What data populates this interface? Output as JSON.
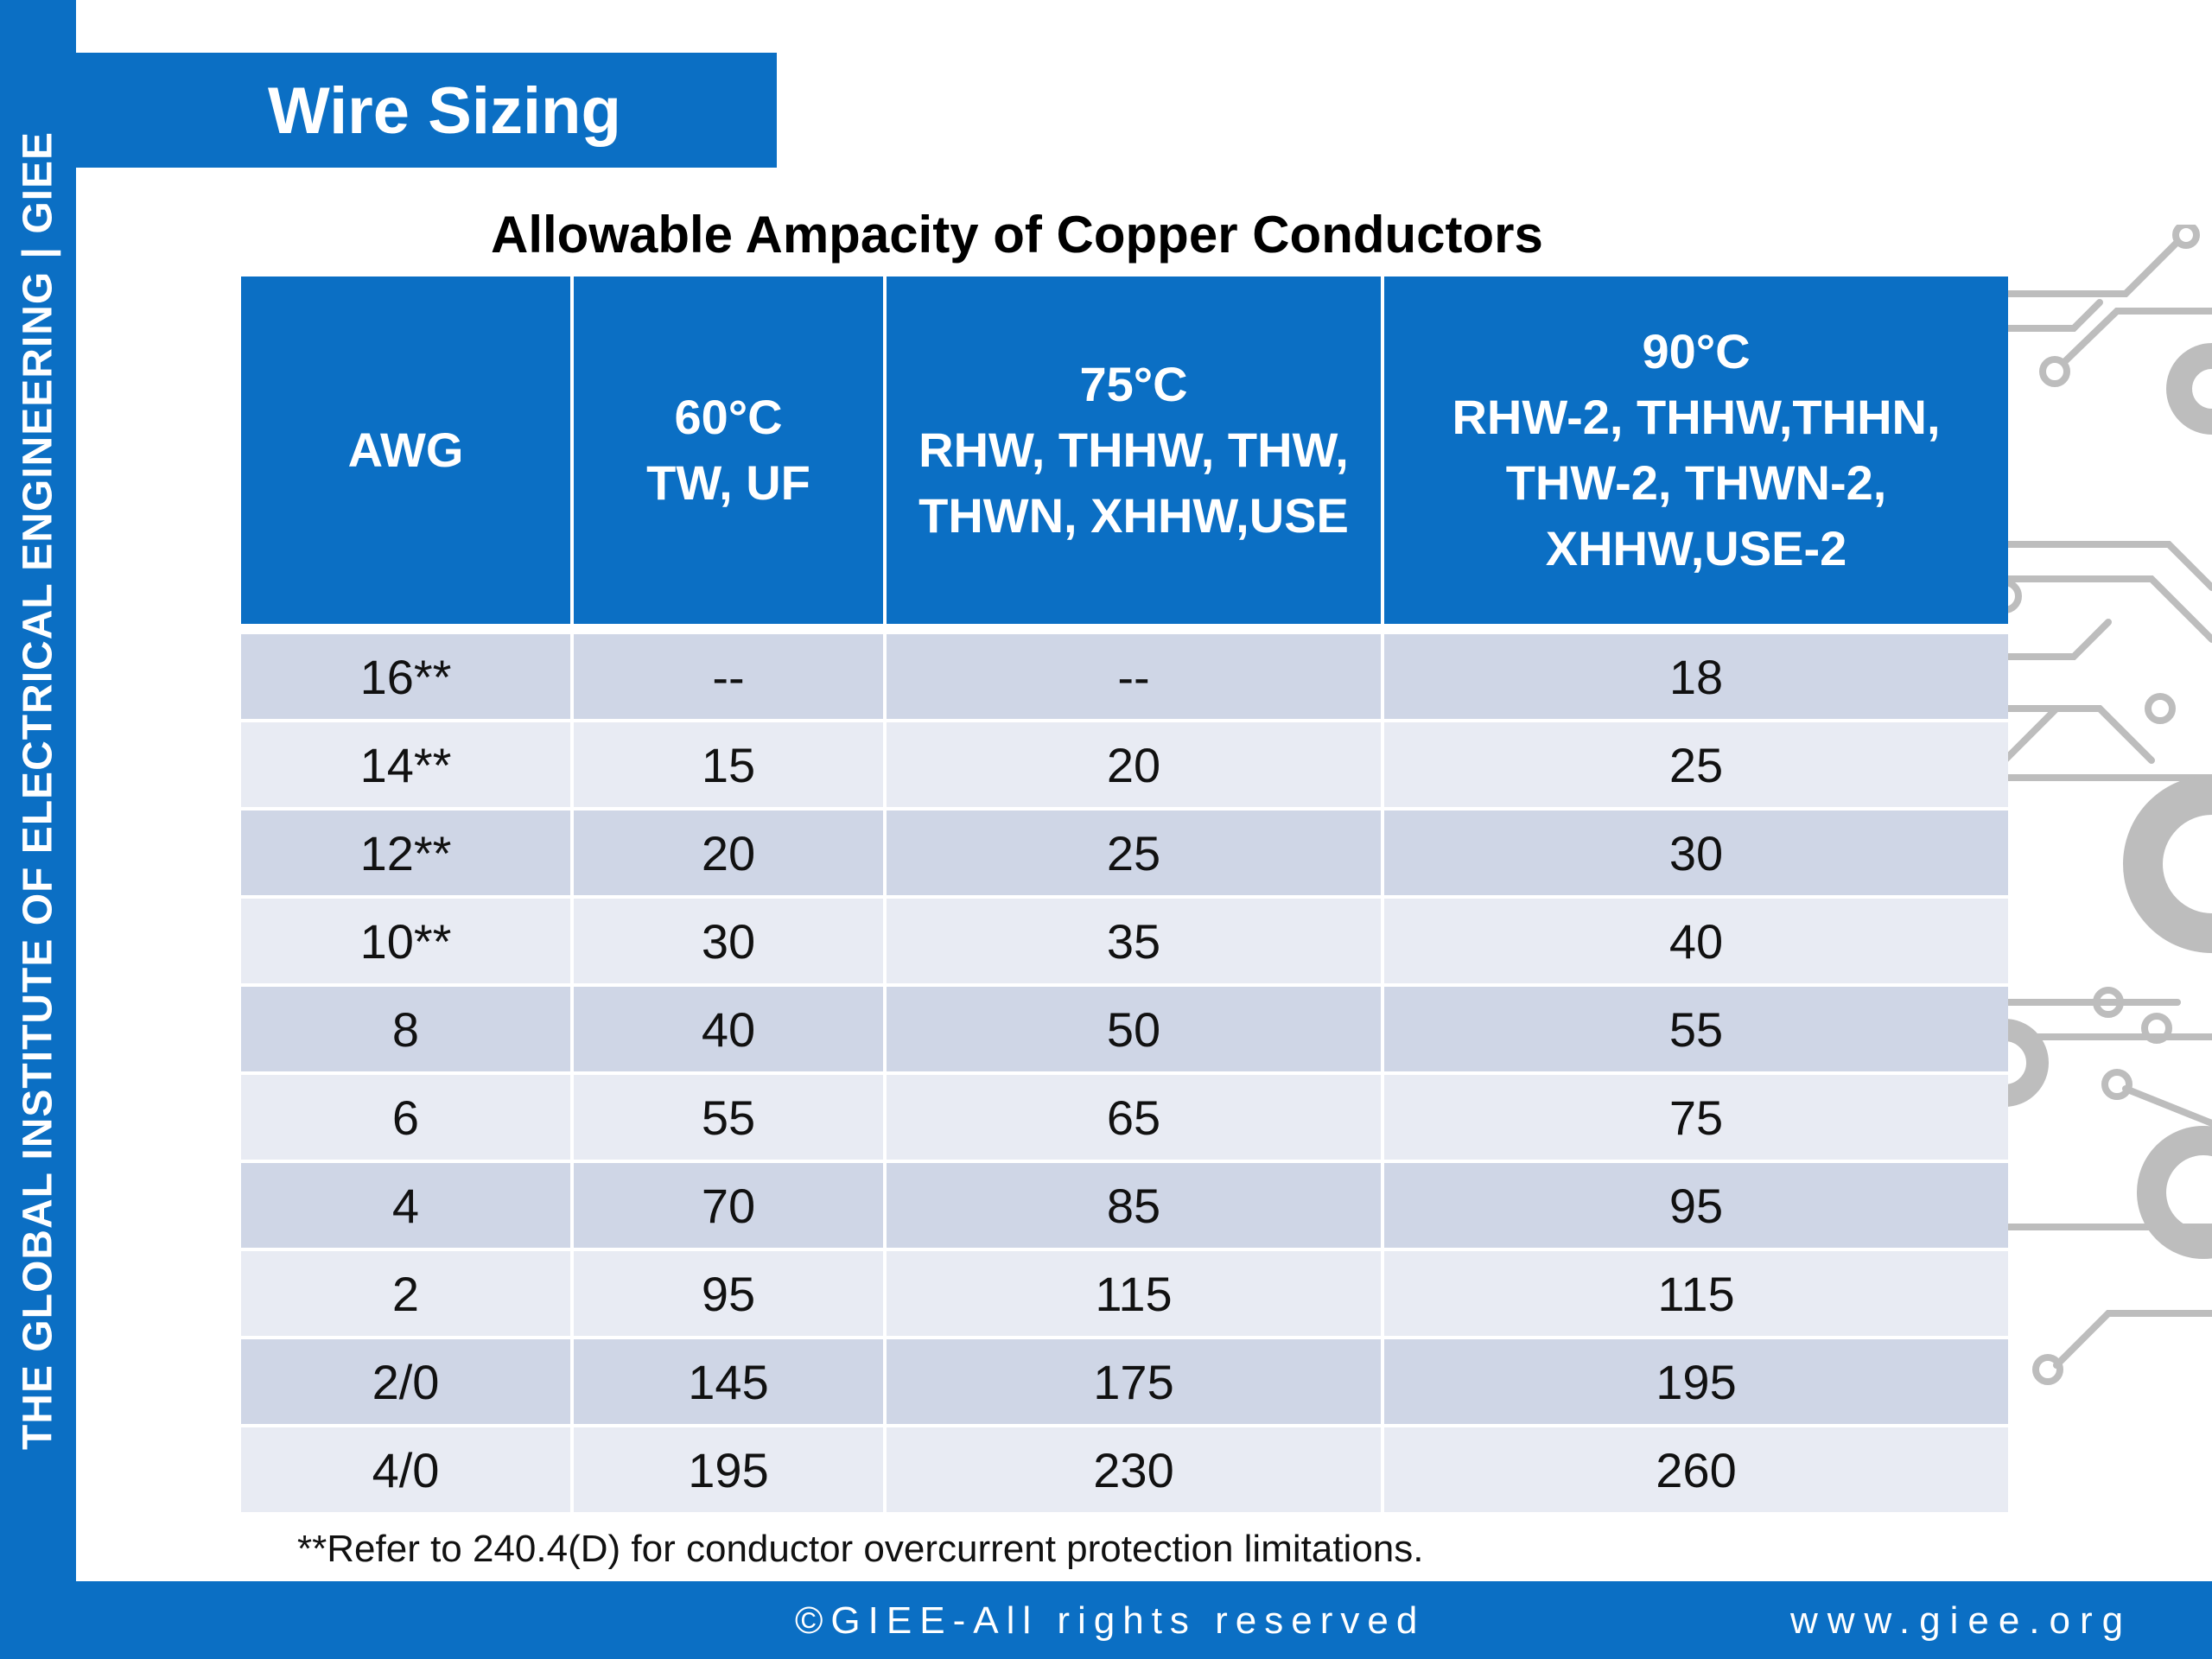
{
  "sidebar": {
    "text": "THE GLOBAL INSTITUTE OF ELECTRICAL ENGINEERING | GIEE"
  },
  "slide": {
    "title": "Wire Sizing",
    "subtitle": "Allowable Ampacity of Copper Conductors"
  },
  "table": {
    "headers": [
      {
        "lines": [
          "AWG"
        ]
      },
      {
        "lines": [
          "60°C",
          "TW, UF"
        ]
      },
      {
        "lines": [
          "75°C",
          "RHW, THHW, THW,",
          "THWN, XHHW,USE"
        ]
      },
      {
        "lines": [
          "90°C",
          "RHW-2, THHW,THHN,",
          "THW-2, THWN-2,",
          "XHHW,USE-2"
        ]
      }
    ],
    "rows": [
      [
        "16**",
        "--",
        "--",
        "18"
      ],
      [
        "14**",
        "15",
        "20",
        "25"
      ],
      [
        "12**",
        "20",
        "25",
        "30"
      ],
      [
        "10**",
        "30",
        "35",
        "40"
      ],
      [
        "8",
        "40",
        "50",
        "55"
      ],
      [
        "6",
        "55",
        "65",
        "75"
      ],
      [
        "4",
        "70",
        "85",
        "95"
      ],
      [
        "2",
        "95",
        "115",
        "115"
      ],
      [
        "2/0",
        "145",
        "175",
        "195"
      ],
      [
        "4/0",
        "195",
        "230",
        "260"
      ]
    ]
  },
  "footnote": "**Refer to 240.4(D) for conductor overcurrent protection limitations.",
  "footer": {
    "copyright": "©GIEE-All rights reserved",
    "website": "www.giee.org"
  },
  "colors": {
    "brand_blue": "#0b6fc4",
    "row_dark": "#cfd6e6",
    "row_light": "#e8ebf3",
    "circuit_gray": "#bdbdbd"
  },
  "decoration": {
    "icon": "circuit-board-decoration-icon"
  }
}
